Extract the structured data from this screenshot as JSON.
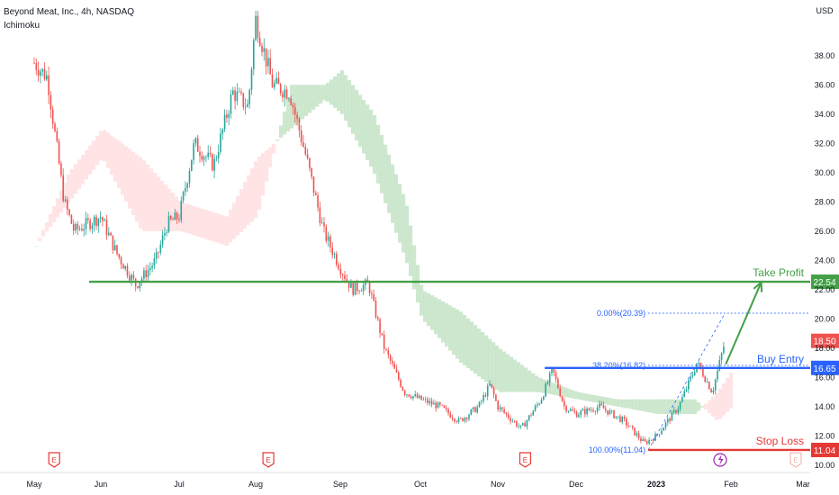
{
  "header": {
    "title": "Beyond Meat, Inc., 4h, NASDAQ",
    "indicator": "Ichimoku"
  },
  "colors": {
    "up": "#26a69a",
    "down": "#ef5350",
    "cloud_bull": "#a5d6a7",
    "cloud_bear": "#ffcdd2",
    "take_profit": "#43a047",
    "buy_entry": "#2962ff",
    "stop_loss": "#e53935",
    "current_price": "#ef5350",
    "fib": "#2962ff",
    "axis_text": "#131722",
    "earnings_marker": "#e53935",
    "event_marker": "#9c27b0"
  },
  "chart_data": {
    "type": "candlestick",
    "currency": "USD",
    "y_ticks": [
      10.0,
      12.0,
      14.0,
      16.0,
      18.0,
      20.0,
      22.0,
      24.0,
      26.0,
      28.0,
      30.0,
      32.0,
      34.0,
      36.0,
      38.0
    ],
    "ylim": [
      9.5,
      41.8
    ],
    "x_ticks": [
      "May",
      "Jun",
      "Jul",
      "Aug",
      "Sep",
      "Oct",
      "Nov",
      "Dec",
      "2023",
      "Feb",
      "Mar"
    ],
    "price_path": [
      [
        "May",
        37.5
      ],
      [
        0.2,
        36.5
      ],
      [
        0.3,
        33.0
      ],
      [
        0.45,
        28.0
      ],
      [
        0.6,
        26.0
      ],
      [
        "Jun",
        27.0
      ],
      [
        0.2,
        24.5
      ],
      [
        0.45,
        22.3
      ],
      [
        0.7,
        24.0
      ],
      [
        0.85,
        26.5
      ],
      [
        "Jul",
        27.0
      ],
      [
        0.2,
        32.0
      ],
      [
        0.45,
        30.5
      ],
      [
        0.7,
        35.5
      ],
      [
        0.9,
        34.5
      ],
      [
        "Aug",
        40.5
      ],
      [
        0.2,
        36.0
      ],
      [
        0.4,
        35.5
      ],
      [
        0.6,
        31.0
      ],
      [
        0.8,
        26.0
      ],
      [
        "Sep",
        23.5
      ],
      [
        0.15,
        22.0
      ],
      [
        0.35,
        22.4
      ],
      [
        0.55,
        18.0
      ],
      [
        0.8,
        15.0
      ],
      [
        "Oct",
        14.5
      ],
      [
        0.25,
        14.0
      ],
      [
        0.5,
        13.0
      ],
      [
        0.75,
        14.0
      ],
      [
        0.9,
        15.5
      ],
      [
        "Nov",
        14.0
      ],
      [
        0.3,
        12.5
      ],
      [
        0.55,
        14.5
      ],
      [
        0.7,
        16.5
      ],
      [
        0.85,
        14.0
      ],
      [
        "Dec",
        13.5
      ],
      [
        0.3,
        14.0
      ],
      [
        0.6,
        13.0
      ],
      [
        0.85,
        11.5
      ],
      [
        "2023",
        12.0
      ],
      [
        0.3,
        14.0
      ],
      [
        0.55,
        17.0
      ],
      [
        0.75,
        15.0
      ],
      [
        0.92,
        18.5
      ]
    ],
    "horizontal_levels": [
      {
        "label": "Take Profit",
        "value": 22.54,
        "value_label": "22.54",
        "from": [
          "Jun",
          -0.15
        ],
        "to": "right"
      },
      {
        "label": "Buy Entry",
        "value": 16.65,
        "value_label": "16.65",
        "from": [
          "Nov",
          0.6
        ],
        "to": "right"
      },
      {
        "label": "Stop Loss",
        "value": 11.04,
        "value_label": "11.04",
        "from": [
          "Dec",
          0.9
        ],
        "to": "right"
      }
    ],
    "fibonacci": [
      {
        "label": "0.00%(20.39)",
        "value": 20.39
      },
      {
        "label": "38.20%(16.82)",
        "value": 16.82
      },
      {
        "label": "100.00%(11.04)",
        "value": 11.04
      }
    ],
    "current_price": {
      "value": 18.5,
      "label": "18.50"
    },
    "projection_arrow": {
      "from": [
        [
          "2023",
          0.93
        ],
        16.9
      ],
      "to": [
        [
          "Feb",
          0.42
        ],
        22.5
      ]
    },
    "earnings_markers": [
      [
        "May",
        0.3
      ],
      [
        "Aug",
        0.15
      ],
      [
        "Nov",
        0.35
      ],
      [
        "Feb",
        0.9
      ]
    ],
    "event_marker": [
      "Feb",
      -0.15
    ],
    "ichimoku_cloud": [
      [
        "May",
        25.0,
        25.0
      ],
      [
        0.5,
        28.0,
        30.0
      ],
      [
        "Jun",
        31.0,
        33.0
      ],
      [
        0.5,
        26.0,
        31.0
      ],
      [
        "Jul",
        26.0,
        28.0
      ],
      [
        0.6,
        25.0,
        27.0
      ],
      [
        "Aug",
        27.0,
        31.0
      ],
      [
        0.4,
        36.0,
        33.0
      ],
      [
        0.8,
        36.0,
        35.0
      ],
      [
        "Sep",
        37.0,
        34.0
      ],
      [
        0.4,
        34.0,
        30.0
      ],
      [
        0.8,
        28.0,
        24.0
      ],
      [
        "Oct",
        22.0,
        20.0
      ],
      [
        0.5,
        20.5,
        17.0
      ],
      [
        "Nov",
        18.0,
        15.0
      ],
      [
        0.5,
        16.0,
        15.0
      ],
      [
        "Dec",
        15.0,
        14.5
      ],
      [
        0.5,
        14.5,
        14.0
      ],
      [
        "2023",
        14.5,
        13.5
      ],
      [
        0.5,
        14.5,
        13.5
      ],
      [
        0.8,
        13.0,
        15.0
      ],
      [
        "Feb",
        14.0,
        16.5
      ]
    ]
  }
}
